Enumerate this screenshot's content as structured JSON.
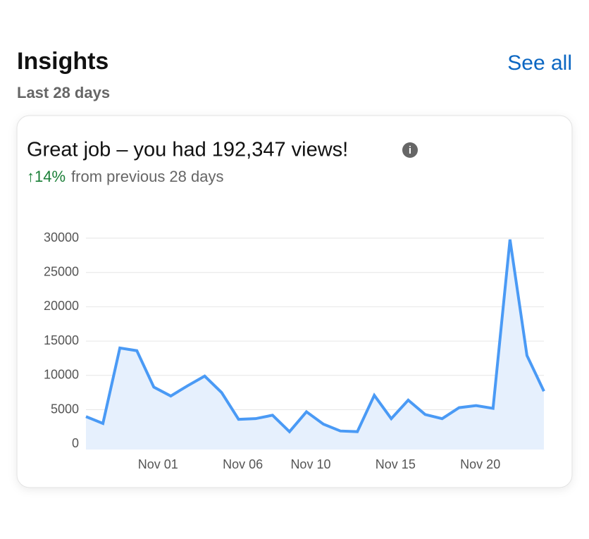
{
  "header": {
    "title": "Insights",
    "link": "See all",
    "subtitle": "Last 28 days"
  },
  "card": {
    "headline": "Great job – you had 192,347 views!",
    "change": "↑14%",
    "change_note": "from previous 28 days"
  },
  "chart_data": {
    "type": "line",
    "categories": [
      null,
      null,
      null,
      null,
      "Nov 01",
      null,
      null,
      null,
      null,
      "Nov 06",
      null,
      null,
      null,
      "Nov 10",
      null,
      null,
      null,
      null,
      "Nov 15",
      null,
      null,
      null,
      null,
      "Nov 20",
      null,
      null,
      null,
      null
    ],
    "series": [
      {
        "name": "Views",
        "color": "#4a9af5",
        "values": [
          4000,
          3000,
          14000,
          13600,
          8300,
          7000,
          8500,
          9900,
          7500,
          3600,
          3700,
          4200,
          1800,
          4700,
          2900,
          1900,
          1800,
          7100,
          3700,
          6400,
          4300,
          3700,
          5300,
          5600,
          5200,
          29800,
          12900,
          7700
        ]
      }
    ],
    "ylim": [
      -800,
      30000
    ],
    "yticks": [
      0,
      5000,
      10000,
      15000,
      20000,
      25000,
      30000
    ],
    "grid": true,
    "area_color": "#e6f0fd"
  }
}
